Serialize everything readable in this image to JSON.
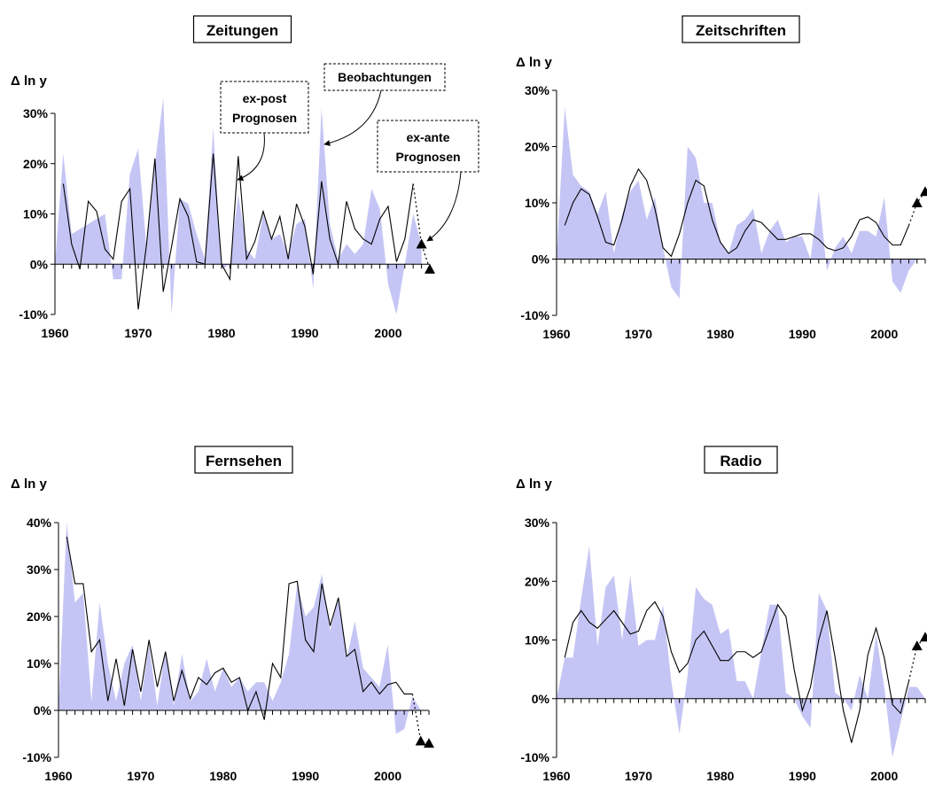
{
  "colors": {
    "observation_fill": "#c5c5f5",
    "forecast_line": "#000000",
    "marker": "#000000"
  },
  "annotations": {
    "expost": [
      "ex-post",
      "Prognosen"
    ],
    "obs": [
      "Beobachtungen"
    ],
    "exante": [
      "ex-ante",
      "Prognosen"
    ]
  },
  "chart_data": [
    {
      "type": "area",
      "title": "Zeitungen",
      "ylabel": "Δ ln y",
      "xlim": [
        1960,
        2005
      ],
      "ylim": [
        -10,
        30
      ],
      "yticks": [
        -10,
        0,
        10,
        20,
        30
      ],
      "ytick_labels": [
        "-10%",
        "0%",
        "10%",
        "20%",
        "30%"
      ],
      "xticks": [
        1960,
        1970,
        1980,
        1990,
        2000
      ],
      "series": [
        {
          "values_x": [
            1960,
            1961,
            1962,
            1963,
            1964,
            1965,
            1966,
            1967,
            1968,
            1969,
            1970,
            1971,
            1972,
            1973,
            1974,
            1975,
            1976,
            1977,
            1978,
            1979,
            1980,
            1981,
            1982,
            1983,
            1984,
            1985,
            1986,
            1987,
            1988,
            1989,
            1990,
            1991,
            1992,
            1993,
            1994,
            1995,
            1996,
            1997,
            1998,
            1999,
            2000,
            2001,
            2002,
            2003,
            2004
          ],
          "values_y": [
            0,
            22,
            6,
            7,
            8,
            9,
            10,
            -3,
            -3,
            18,
            23,
            3,
            20,
            33,
            -10,
            13,
            12,
            6,
            1,
            27,
            -1,
            0,
            14,
            3,
            1,
            10,
            5,
            6,
            2,
            8,
            9,
            -5,
            31,
            8,
            1,
            4,
            2,
            4,
            15,
            11,
            -4,
            -10,
            0,
            10,
            4
          ]
        },
        {
          "values_x": [
            1961,
            1962,
            1963,
            1964,
            1965,
            1966,
            1967,
            1968,
            1969,
            1970,
            1971,
            1972,
            1973,
            1974,
            1975,
            1976,
            1977,
            1978,
            1979,
            1980,
            1981,
            1982,
            1983,
            1984,
            1985,
            1986,
            1987,
            1988,
            1989,
            1990,
            1991,
            1992,
            1993,
            1994,
            1995,
            1996,
            1997,
            1998,
            1999,
            2000,
            2001,
            2002,
            2003
          ],
          "values_y": [
            16,
            4,
            -1,
            12.5,
            10.5,
            3,
            1,
            12.5,
            15,
            -9,
            4,
            21,
            -5.5,
            3.5,
            13,
            9.5,
            0.5,
            0,
            22,
            0,
            -3,
            21.5,
            1,
            4.5,
            10.5,
            5,
            9.5,
            1,
            12,
            7.5,
            -2,
            16.5,
            5,
            0,
            12.5,
            7,
            5,
            4,
            9,
            11.5,
            0.5,
            5,
            16
          ]
        },
        {
          "values_x": [
            2003,
            2004,
            2005
          ],
          "values_y": [
            16,
            4,
            -1
          ]
        }
      ],
      "markers": {
        "x": [
          2004,
          2005
        ],
        "y": [
          4,
          -1
        ]
      }
    },
    {
      "type": "area",
      "title": "Zeitschriften",
      "ylabel": "Δ ln y",
      "xlim": [
        1960,
        2005
      ],
      "ylim": [
        -10,
        30
      ],
      "yticks": [
        -10,
        0,
        10,
        20,
        30
      ],
      "ytick_labels": [
        "-10%",
        "0%",
        "10%",
        "20%",
        "30%"
      ],
      "xticks": [
        1960,
        1970,
        1980,
        1990,
        2000
      ],
      "series": [
        {
          "values_x": [
            1960,
            1961,
            1962,
            1963,
            1964,
            1965,
            1966,
            1967,
            1968,
            1969,
            1970,
            1971,
            1972,
            1973,
            1974,
            1975,
            1976,
            1977,
            1978,
            1979,
            1980,
            1981,
            1982,
            1983,
            1984,
            1985,
            1986,
            1987,
            1988,
            1989,
            1990,
            1991,
            1992,
            1993,
            1994,
            1995,
            1996,
            1997,
            1998,
            1999,
            2000,
            2001,
            2002,
            2003,
            2004,
            2005
          ],
          "values_y": [
            0,
            27,
            15,
            13,
            12,
            8,
            12,
            1,
            8,
            12,
            14,
            7,
            11,
            2,
            -5,
            -7,
            20,
            18,
            10,
            10,
            3,
            1,
            6,
            7,
            9,
            1,
            5,
            7,
            3,
            4,
            4,
            0,
            12,
            -2,
            2,
            4,
            1,
            5,
            5,
            4,
            11,
            -4,
            -6,
            -2,
            0,
            0
          ]
        },
        {
          "values_x": [
            1961,
            1962,
            1963,
            1964,
            1965,
            1966,
            1967,
            1968,
            1969,
            1970,
            1971,
            1972,
            1973,
            1974,
            1975,
            1976,
            1977,
            1978,
            1979,
            1980,
            1981,
            1982,
            1983,
            1984,
            1985,
            1986,
            1987,
            1988,
            1989,
            1990,
            1991,
            1992,
            1993,
            1994,
            1995,
            1996,
            1997,
            1998,
            1999,
            2000,
            2001,
            2002,
            2003
          ],
          "values_y": [
            6,
            10,
            12.5,
            11.5,
            7.5,
            3,
            2.5,
            7,
            13,
            16,
            14,
            9,
            2,
            0.5,
            4.5,
            10,
            14,
            13,
            7,
            3,
            1,
            2,
            5,
            7,
            6.5,
            5,
            3.5,
            3.5,
            4,
            4.5,
            4.5,
            3.5,
            2,
            1.5,
            2,
            4,
            7,
            7.5,
            6.5,
            4,
            2.5,
            2.5,
            6
          ]
        },
        {
          "values_x": [
            2003,
            2004,
            2005
          ],
          "values_y": [
            6,
            10,
            12
          ]
        }
      ],
      "markers": {
        "x": [
          2004,
          2005
        ],
        "y": [
          10,
          12
        ]
      }
    },
    {
      "type": "area",
      "title": "Fernsehen",
      "ylabel": "Δ ln y",
      "xlim": [
        1960,
        2005
      ],
      "ylim": [
        -10,
        40
      ],
      "yticks": [
        -10,
        0,
        10,
        20,
        30,
        40
      ],
      "ytick_labels": [
        "-10%",
        "0%",
        "10%",
        "20%",
        "30%",
        "40%"
      ],
      "xticks": [
        1960,
        1970,
        1980,
        1990,
        2000
      ],
      "series": [
        {
          "values_x": [
            1960,
            1961,
            1962,
            1963,
            1964,
            1965,
            1966,
            1967,
            1968,
            1969,
            1970,
            1971,
            1972,
            1973,
            1974,
            1975,
            1976,
            1977,
            1978,
            1979,
            1980,
            1981,
            1982,
            1983,
            1984,
            1985,
            1986,
            1987,
            1988,
            1989,
            1990,
            1991,
            1992,
            1993,
            1994,
            1995,
            1996,
            1997,
            1998,
            1999,
            2000,
            2001,
            2002,
            2003,
            2004
          ],
          "values_y": [
            0,
            40,
            23,
            25,
            2,
            23,
            10,
            2,
            10,
            14,
            2,
            14,
            1,
            13,
            1,
            12,
            2,
            4,
            11,
            4,
            9,
            5,
            7,
            4,
            6,
            6,
            2,
            6,
            12,
            27,
            20,
            22,
            29,
            17,
            24,
            11,
            19,
            9,
            7,
            5,
            14,
            -5,
            -4,
            3,
            0
          ]
        },
        {
          "values_x": [
            1961,
            1962,
            1963,
            1964,
            1965,
            1966,
            1967,
            1968,
            1969,
            1970,
            1971,
            1972,
            1973,
            1974,
            1975,
            1976,
            1977,
            1978,
            1979,
            1980,
            1981,
            1982,
            1983,
            1984,
            1985,
            1986,
            1987,
            1988,
            1989,
            1990,
            1991,
            1992,
            1993,
            1994,
            1995,
            1996,
            1997,
            1998,
            1999,
            2000,
            2001,
            2002,
            2003
          ],
          "values_y": [
            37,
            27,
            27,
            12.5,
            15,
            2,
            11,
            1,
            13,
            4,
            15,
            5,
            12.5,
            2,
            8.5,
            2.5,
            7,
            5.5,
            8,
            9,
            6,
            7,
            0,
            4,
            -2,
            10,
            7,
            27,
            27.5,
            15,
            12.5,
            27,
            18,
            24,
            11.5,
            13,
            4,
            6,
            3.5,
            5.5,
            6,
            3.5,
            3.5
          ]
        },
        {
          "values_x": [
            2003,
            2004,
            2005
          ],
          "values_y": [
            3.5,
            -6.5,
            -7
          ]
        }
      ],
      "markers": {
        "x": [
          2004,
          2005
        ],
        "y": [
          -6.5,
          -7
        ]
      }
    },
    {
      "type": "area",
      "title": "Radio",
      "ylabel": "Δ ln y",
      "xlim": [
        1960,
        2005
      ],
      "ylim": [
        -10,
        30
      ],
      "yticks": [
        -10,
        0,
        10,
        20,
        30
      ],
      "ytick_labels": [
        "-10%",
        "0%",
        "10%",
        "20%",
        "30%"
      ],
      "xticks": [
        1960,
        1970,
        1980,
        1990,
        2000
      ],
      "series": [
        {
          "values_x": [
            1960,
            1961,
            1962,
            1963,
            1964,
            1965,
            1966,
            1967,
            1968,
            1969,
            1970,
            1971,
            1972,
            1973,
            1974,
            1975,
            1976,
            1977,
            1978,
            1979,
            1980,
            1981,
            1982,
            1983,
            1984,
            1985,
            1986,
            1987,
            1988,
            1989,
            1990,
            1991,
            1992,
            1993,
            1994,
            1995,
            1996,
            1997,
            1998,
            1999,
            2000,
            2001,
            2002,
            2003,
            2004,
            2005
          ],
          "values_y": [
            0,
            7,
            7,
            17,
            26,
            9,
            19,
            21,
            10,
            21,
            9,
            10,
            10,
            16,
            3,
            -6,
            4,
            19,
            17,
            16,
            11,
            12,
            3,
            3,
            0,
            8,
            16,
            16,
            1,
            0,
            -3,
            -5,
            18,
            15,
            1,
            0,
            -2,
            4,
            0,
            11,
            2,
            -10,
            -4,
            2,
            2,
            0
          ]
        },
        {
          "values_x": [
            1961,
            1962,
            1963,
            1964,
            1965,
            1966,
            1967,
            1968,
            1969,
            1970,
            1971,
            1972,
            1973,
            1974,
            1975,
            1976,
            1977,
            1978,
            1979,
            1980,
            1981,
            1982,
            1983,
            1984,
            1985,
            1986,
            1987,
            1988,
            1989,
            1990,
            1991,
            1992,
            1993,
            1994,
            1995,
            1996,
            1997,
            1998,
            1999,
            2000,
            2001,
            2002,
            2003
          ],
          "values_y": [
            7,
            13,
            15,
            13,
            12,
            13.5,
            15,
            13,
            11,
            11.5,
            15,
            16.5,
            14,
            8,
            4.5,
            6,
            10,
            11.5,
            9,
            6.5,
            6.5,
            8,
            8,
            7,
            8,
            12,
            16,
            14,
            5,
            -2,
            2,
            10,
            15,
            7,
            -2,
            -7.5,
            -2,
            7.5,
            12,
            7,
            -1,
            -2.5,
            3
          ]
        },
        {
          "values_x": [
            2003,
            2004,
            2005
          ],
          "values_y": [
            3,
            9,
            10.5
          ]
        }
      ],
      "markers": {
        "x": [
          2004,
          2005
        ],
        "y": [
          9,
          10.5
        ]
      }
    }
  ]
}
